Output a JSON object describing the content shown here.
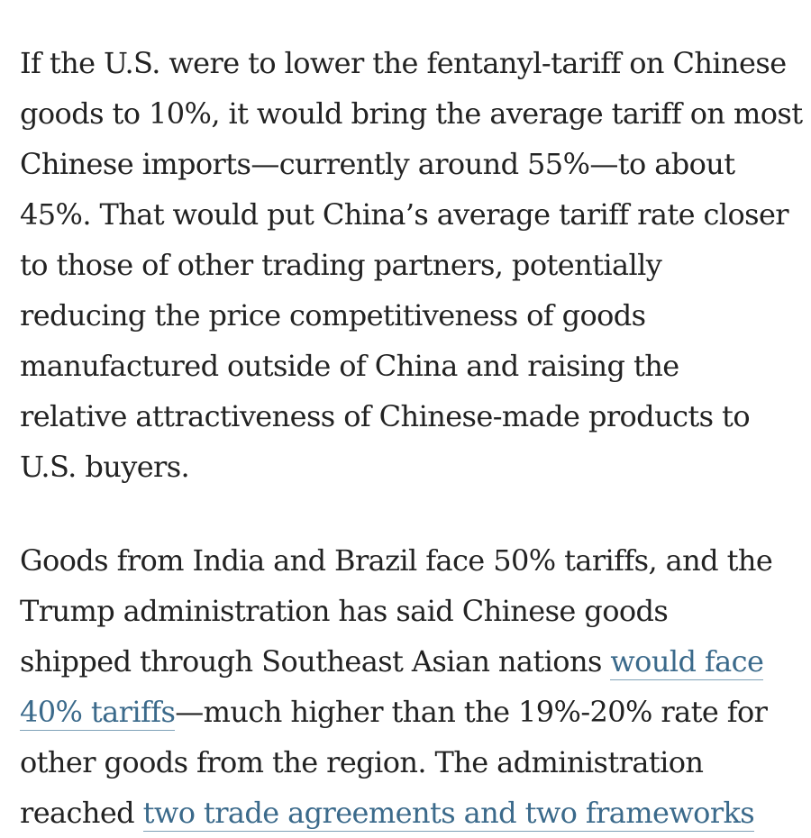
{
  "article": {
    "paragraph1": {
      "lines": [
        "If the U.S. were to lower the fentanyl-tariff on Chinese",
        "goods to 10%, it would bring the average tariff on most",
        "Chinese imports—currently around 55%—to about",
        "45%. That would put China’s average tariff rate closer",
        "to those of other trading partners, potentially",
        "reducing the price competitiveness of goods",
        "manufactured outside of China and raising the",
        "relative attractiveness of Chinese-made products to",
        "U.S. buyers."
      ]
    },
    "paragraph2": {
      "line1": "Goods from India and Brazil face 50% tariffs, and the",
      "line2": "Trump administration has said Chinese goods",
      "line3_text": "shipped through Southeast Asian nations ",
      "link1_part1": "would face",
      "link1_part2": "40% tariffs",
      "line4_text": "—much higher than the 19%-20% rate for",
      "line5": "other goods from the region. The administration",
      "line6_text": "reached ",
      "link2": "two trade agreements and two frameworks"
    }
  },
  "colors": {
    "body_text": "#222222",
    "link_text": "#3b6a8b",
    "link_underline": "#7fa1b8",
    "background": "#ffffff"
  }
}
